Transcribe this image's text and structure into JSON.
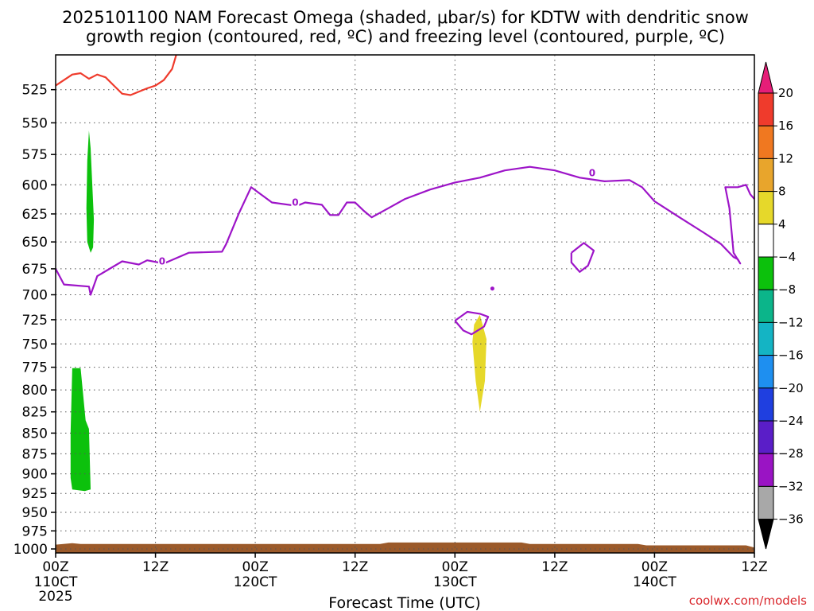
{
  "chart_data": {
    "type": "time-height",
    "title_lines": [
      "2025101100 NAM Forecast Omega (shaded, μbar/s) for KDTW with dendritic snow",
      "growth region (contoured, red, ºC) and freezing level (contoured, purple, ºC)"
    ],
    "xlabel": "Forecast Time (UTC)",
    "credit": "coolwx.com/models",
    "x_range_hours": [
      0,
      84
    ],
    "x_ticks": [
      {
        "hour": 0,
        "line1": "00Z",
        "line2": "110CT",
        "line3": "2025"
      },
      {
        "hour": 12,
        "line1": "12Z",
        "line2": "",
        "line3": ""
      },
      {
        "hour": 24,
        "line1": "00Z",
        "line2": "120CT",
        "line3": ""
      },
      {
        "hour": 36,
        "line1": "12Z",
        "line2": "",
        "line3": ""
      },
      {
        "hour": 48,
        "line1": "00Z",
        "line2": "130CT",
        "line3": ""
      },
      {
        "hour": 60,
        "line1": "12Z",
        "line2": "",
        "line3": ""
      },
      {
        "hour": 72,
        "line1": "00Z",
        "line2": "140CT",
        "line3": ""
      },
      {
        "hour": 84,
        "line1": "12Z",
        "line2": "",
        "line3": ""
      }
    ],
    "y_ticks": [
      525,
      550,
      575,
      600,
      625,
      650,
      675,
      700,
      725,
      750,
      775,
      800,
      825,
      850,
      875,
      900,
      925,
      950,
      975,
      1000
    ],
    "y_range_hpa": [
      500,
      1005
    ],
    "y_scale": "log-pressure",
    "grid": true,
    "colorbar": {
      "labels": [
        "20",
        "16",
        "12",
        "8",
        "4",
        "−4",
        "−8",
        "−12",
        "−16",
        "−20",
        "−24",
        "−28",
        "−32",
        "−36"
      ],
      "colors": [
        "#e61e78",
        "#ef3b2c",
        "#f07820",
        "#e8a52c",
        "#e6d82a",
        "#ffffff",
        "#0cc10c",
        "#0bb58a",
        "#14b4c4",
        "#1e8ff0",
        "#1f3fe0",
        "#5a1ec8",
        "#9a14c4",
        "#a8a8a8",
        "#000000"
      ]
    },
    "contour_label": "0",
    "freezing_level": {
      "color": "#9d14c8",
      "main": [
        [
          0,
          675
        ],
        [
          1,
          690
        ],
        [
          4,
          692
        ],
        [
          4.2,
          700
        ],
        [
          5,
          682
        ],
        [
          8,
          668
        ],
        [
          10,
          671
        ],
        [
          11,
          667
        ],
        [
          13,
          670
        ],
        [
          16,
          660
        ],
        [
          20,
          659
        ],
        [
          20.5,
          652
        ],
        [
          22,
          625
        ],
        [
          23.5,
          602
        ],
        [
          26,
          615
        ],
        [
          29,
          618
        ],
        [
          30,
          615
        ],
        [
          32,
          617
        ],
        [
          33,
          626
        ],
        [
          34,
          626
        ],
        [
          35,
          615
        ],
        [
          36,
          615
        ],
        [
          37,
          622
        ],
        [
          38,
          628
        ],
        [
          40,
          620
        ],
        [
          42,
          612
        ],
        [
          45,
          604
        ],
        [
          48,
          598
        ],
        [
          51,
          594
        ],
        [
          54,
          588
        ],
        [
          57,
          585
        ],
        [
          60,
          588
        ],
        [
          63,
          594
        ],
        [
          66,
          597
        ],
        [
          69,
          596
        ],
        [
          70.5,
          602
        ],
        [
          72,
          614
        ],
        [
          75,
          628
        ],
        [
          78,
          642
        ],
        [
          80,
          652
        ],
        [
          81.5,
          664
        ],
        [
          82,
          666
        ],
        [
          82.3,
          670
        ],
        [
          81.5,
          660
        ],
        [
          81,
          620
        ],
        [
          80.5,
          602
        ],
        [
          82,
          602
        ],
        [
          83,
          600
        ],
        [
          83.5,
          608
        ],
        [
          84,
          612
        ]
      ],
      "loops": [
        [
          [
            48,
            726
          ],
          [
            49.5,
            717
          ],
          [
            51,
            719
          ],
          [
            52,
            722
          ],
          [
            51.5,
            732
          ],
          [
            50,
            740
          ],
          [
            49,
            736
          ],
          [
            48,
            726
          ]
        ],
        [
          [
            62,
            660
          ],
          [
            63.5,
            651
          ],
          [
            64.7,
            658
          ],
          [
            64,
            672
          ],
          [
            63,
            678
          ],
          [
            62,
            669
          ],
          [
            62,
            660
          ]
        ]
      ],
      "blip": [
        52.5,
        694
      ]
    },
    "dgz_contour": {
      "color": "#ef3b2c",
      "points": [
        [
          0,
          522
        ],
        [
          2,
          514
        ],
        [
          3,
          513
        ],
        [
          4,
          517
        ],
        [
          5,
          514
        ],
        [
          6,
          516
        ],
        [
          7,
          522
        ],
        [
          8,
          528
        ],
        [
          9,
          529
        ],
        [
          11,
          524
        ],
        [
          12,
          522
        ],
        [
          13,
          518
        ],
        [
          14,
          510
        ],
        [
          14.5,
          500
        ]
      ]
    },
    "omega_regions": [
      {
        "color": "#0cc10c",
        "points": [
          [
            4,
            556
          ],
          [
            4.2,
            570
          ],
          [
            4.6,
            630
          ],
          [
            4.5,
            655
          ],
          [
            4.2,
            660
          ],
          [
            3.8,
            650
          ],
          [
            3.7,
            620
          ],
          [
            3.8,
            580
          ],
          [
            4,
            556
          ]
        ]
      },
      {
        "color": "#0cc10c",
        "points": [
          [
            2,
            776
          ],
          [
            3,
            776
          ],
          [
            3.6,
            835
          ],
          [
            4,
            845
          ],
          [
            4.2,
            920
          ],
          [
            3.5,
            922
          ],
          [
            2,
            920
          ],
          [
            1.8,
            905
          ],
          [
            1.8,
            850
          ],
          [
            2,
            776
          ]
        ]
      },
      {
        "color": "#e6d82a",
        "points": [
          [
            50.3,
            730
          ],
          [
            51,
            720
          ],
          [
            51.8,
            745
          ],
          [
            51.6,
            790
          ],
          [
            51,
            825
          ],
          [
            50.5,
            790
          ],
          [
            50.1,
            748
          ],
          [
            50.3,
            730
          ]
        ]
      }
    ],
    "terrain": {
      "color": "#9b5a2a",
      "top_points": [
        [
          0,
          994
        ],
        [
          2,
          992
        ],
        [
          3,
          993
        ],
        [
          39,
          993
        ],
        [
          40,
          991
        ],
        [
          56,
          991
        ],
        [
          57,
          993
        ],
        [
          70,
          993
        ],
        [
          71,
          995
        ],
        [
          83,
          995
        ],
        [
          84,
          998
        ]
      ],
      "bottom_hpa": 1005
    }
  }
}
